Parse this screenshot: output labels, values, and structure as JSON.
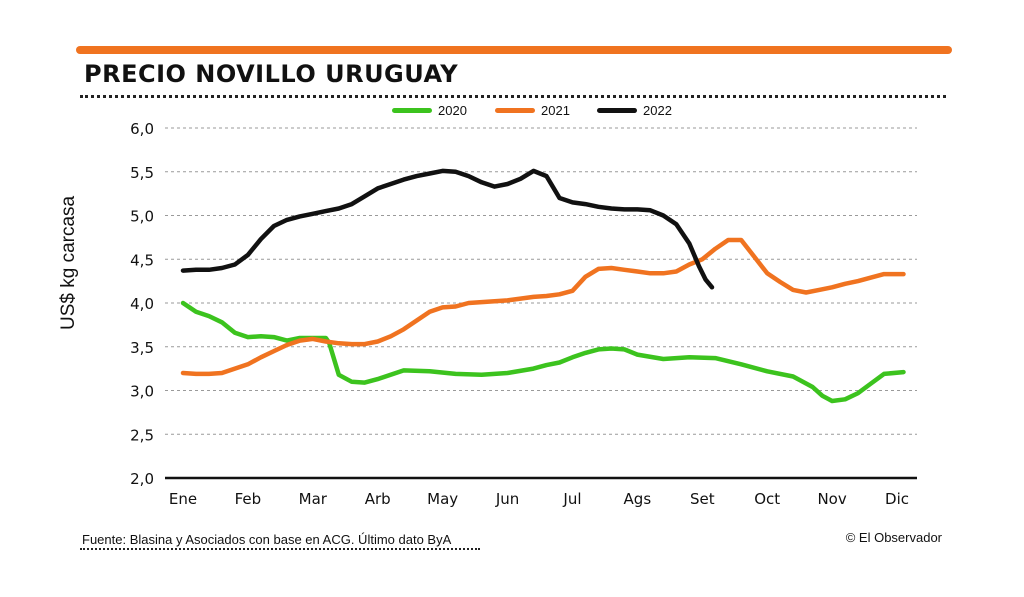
{
  "header": {
    "title": "PRECIO NOVILLO URUGUAY",
    "accent_color": "#f07320"
  },
  "footer": {
    "source": "Fuente: Blasina y Asociados con base en  ACG. Último dato ByA",
    "credit": "© El Observador"
  },
  "chart_data": {
    "type": "line",
    "title": "PRECIO NOVILLO URUGUAY",
    "xlabel": "",
    "ylabel": "US$ kg carcasa",
    "categories": [
      "Ene",
      "Feb",
      "Mar",
      "Arb",
      "May",
      "Jun",
      "Jul",
      "Ags",
      "Set",
      "Oct",
      "Nov",
      "Dic"
    ],
    "y_tick_labels": [
      "6,0",
      "5,5",
      "5,0",
      "4,5",
      "4,0",
      "3,5",
      "3,0",
      "2,5",
      "2,0"
    ],
    "y_ticks": [
      6.0,
      5.5,
      5.0,
      4.5,
      4.0,
      3.5,
      3.0,
      2.5,
      2.0
    ],
    "ylim": [
      2.0,
      6.0
    ],
    "xlim": [
      0,
      11.3
    ],
    "grid": true,
    "legend_position": "top-center",
    "series": [
      {
        "name": "2020",
        "color": "#3cc31e",
        "x": [
          0,
          0.2,
          0.4,
          0.6,
          0.8,
          1.0,
          1.2,
          1.4,
          1.6,
          1.8,
          2.0,
          2.2,
          2.25,
          2.4,
          2.6,
          2.8,
          3.0,
          3.4,
          3.8,
          4.2,
          4.6,
          5.0,
          5.4,
          5.6,
          5.8,
          6.0,
          6.2,
          6.4,
          6.6,
          6.8,
          7.0,
          7.4,
          7.8,
          8.2,
          8.6,
          9.0,
          9.4,
          9.7,
          9.85,
          10.0,
          10.2,
          10.4,
          10.6,
          10.8,
          11.1
        ],
        "y": [
          4.0,
          3.9,
          3.85,
          3.78,
          3.66,
          3.61,
          3.62,
          3.61,
          3.57,
          3.6,
          3.6,
          3.6,
          3.55,
          3.18,
          3.1,
          3.09,
          3.13,
          3.23,
          3.22,
          3.19,
          3.18,
          3.2,
          3.25,
          3.29,
          3.32,
          3.38,
          3.43,
          3.47,
          3.48,
          3.47,
          3.41,
          3.36,
          3.38,
          3.37,
          3.3,
          3.22,
          3.16,
          3.04,
          2.94,
          2.88,
          2.9,
          2.97,
          3.08,
          3.19,
          3.21
        ]
      },
      {
        "name": "2021",
        "color": "#f07320",
        "x": [
          0,
          0.2,
          0.4,
          0.6,
          0.8,
          1.0,
          1.2,
          1.4,
          1.6,
          1.8,
          2.0,
          2.2,
          2.4,
          2.6,
          2.8,
          3.0,
          3.2,
          3.4,
          3.6,
          3.8,
          4.0,
          4.2,
          4.4,
          4.6,
          4.8,
          5.0,
          5.2,
          5.4,
          5.6,
          5.8,
          6.0,
          6.2,
          6.4,
          6.6,
          6.8,
          7.0,
          7.2,
          7.4,
          7.6,
          7.8,
          8.0,
          8.2,
          8.4,
          8.6,
          8.8,
          9.0,
          9.2,
          9.4,
          9.6,
          9.8,
          10.0,
          10.2,
          10.4,
          10.6,
          10.8,
          11.1
        ],
        "y": [
          3.2,
          3.19,
          3.19,
          3.2,
          3.25,
          3.3,
          3.38,
          3.45,
          3.52,
          3.57,
          3.59,
          3.56,
          3.54,
          3.53,
          3.53,
          3.56,
          3.62,
          3.7,
          3.8,
          3.9,
          3.95,
          3.96,
          4.0,
          4.01,
          4.02,
          4.03,
          4.05,
          4.07,
          4.08,
          4.1,
          4.14,
          4.3,
          4.39,
          4.4,
          4.38,
          4.36,
          4.34,
          4.34,
          4.36,
          4.44,
          4.5,
          4.62,
          4.72,
          4.72,
          4.53,
          4.34,
          4.24,
          4.15,
          4.12,
          4.15,
          4.18,
          4.22,
          4.25,
          4.29,
          4.33,
          4.33
        ]
      },
      {
        "name": "2022",
        "color": "#111111",
        "x": [
          0,
          0.2,
          0.4,
          0.6,
          0.8,
          1.0,
          1.2,
          1.4,
          1.6,
          1.8,
          2.0,
          2.2,
          2.4,
          2.6,
          2.8,
          3.0,
          3.2,
          3.4,
          3.6,
          3.8,
          4.0,
          4.2,
          4.4,
          4.6,
          4.8,
          5.0,
          5.2,
          5.4,
          5.6,
          5.8,
          6.0,
          6.2,
          6.4,
          6.6,
          6.8,
          7.0,
          7.2,
          7.4,
          7.6,
          7.8,
          7.95,
          8.05,
          8.15
        ],
        "y": [
          4.37,
          4.38,
          4.38,
          4.4,
          4.44,
          4.55,
          4.73,
          4.88,
          4.95,
          4.99,
          5.02,
          5.05,
          5.08,
          5.13,
          5.22,
          5.31,
          5.36,
          5.41,
          5.45,
          5.48,
          5.51,
          5.5,
          5.45,
          5.38,
          5.33,
          5.36,
          5.42,
          5.51,
          5.45,
          5.2,
          5.15,
          5.13,
          5.1,
          5.08,
          5.07,
          5.07,
          5.06,
          5.0,
          4.9,
          4.68,
          4.42,
          4.27,
          4.18
        ]
      }
    ]
  }
}
